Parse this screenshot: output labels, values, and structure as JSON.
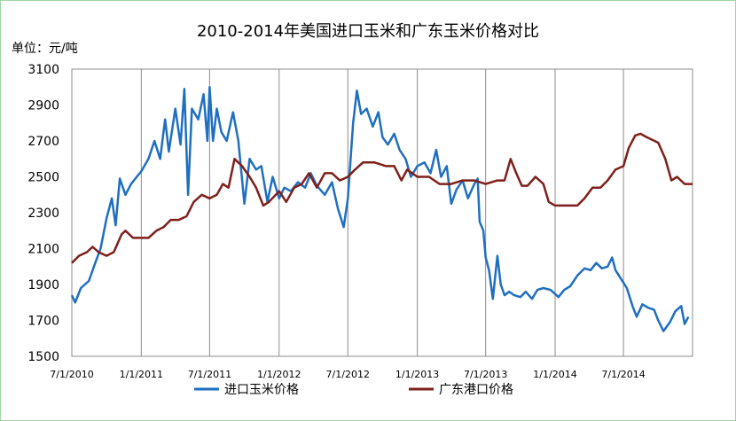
{
  "chart_data": {
    "type": "line",
    "title": "2010-2014年美国进口玉米和广东玉米价格对比",
    "ylabel": "单位：元/吨",
    "xlabel": "",
    "ylim": [
      1500,
      3100
    ],
    "yticks": [
      3100,
      2900,
      2700,
      2500,
      2300,
      2100,
      1900,
      1700,
      1500
    ],
    "xticks": [
      "7/1/2010",
      "1/1/2011",
      "7/1/2011",
      "1/1/2012",
      "7/1/2012",
      "1/1/2013",
      "7/1/2013",
      "1/1/2014",
      "7/1/2014"
    ],
    "xlim": [
      "2010-07-01",
      "2014-12-31"
    ],
    "grid": "vertical",
    "legend_position": "bottom",
    "series": [
      {
        "name": "进口玉米价格",
        "color": "#1f6fc0",
        "points": [
          [
            "2010-07-01",
            1840
          ],
          [
            "2010-07-10",
            1800
          ],
          [
            "2010-07-25",
            1880
          ],
          [
            "2010-08-15",
            1920
          ],
          [
            "2010-09-01",
            2020
          ],
          [
            "2010-09-15",
            2100
          ],
          [
            "2010-10-01",
            2270
          ],
          [
            "2010-10-15",
            2380
          ],
          [
            "2010-10-25",
            2230
          ],
          [
            "2010-11-05",
            2490
          ],
          [
            "2010-11-20",
            2400
          ],
          [
            "2010-12-05",
            2460
          ],
          [
            "2010-12-20",
            2500
          ],
          [
            "2011-01-01",
            2530
          ],
          [
            "2011-01-20",
            2600
          ],
          [
            "2011-02-05",
            2700
          ],
          [
            "2011-02-20",
            2600
          ],
          [
            "2011-03-05",
            2820
          ],
          [
            "2011-03-15",
            2640
          ],
          [
            "2011-04-01",
            2880
          ],
          [
            "2011-04-15",
            2680
          ],
          [
            "2011-04-25",
            2990
          ],
          [
            "2011-05-05",
            2400
          ],
          [
            "2011-05-15",
            2880
          ],
          [
            "2011-06-01",
            2820
          ],
          [
            "2011-06-15",
            2960
          ],
          [
            "2011-06-25",
            2700
          ],
          [
            "2011-07-01",
            3000
          ],
          [
            "2011-07-10",
            2700
          ],
          [
            "2011-07-20",
            2880
          ],
          [
            "2011-08-01",
            2750
          ],
          [
            "2011-08-15",
            2700
          ],
          [
            "2011-09-01",
            2860
          ],
          [
            "2011-09-15",
            2700
          ],
          [
            "2011-10-01",
            2350
          ],
          [
            "2011-10-15",
            2600
          ],
          [
            "2011-11-01",
            2540
          ],
          [
            "2011-11-15",
            2560
          ],
          [
            "2011-12-01",
            2360
          ],
          [
            "2011-12-15",
            2500
          ],
          [
            "2012-01-01",
            2380
          ],
          [
            "2012-01-15",
            2440
          ],
          [
            "2012-02-01",
            2420
          ],
          [
            "2012-02-20",
            2470
          ],
          [
            "2012-03-10",
            2440
          ],
          [
            "2012-03-25",
            2520
          ],
          [
            "2012-04-10",
            2450
          ],
          [
            "2012-05-01",
            2400
          ],
          [
            "2012-05-20",
            2470
          ],
          [
            "2012-06-05",
            2320
          ],
          [
            "2012-06-20",
            2220
          ],
          [
            "2012-07-01",
            2380
          ],
          [
            "2012-07-05",
            2500
          ],
          [
            "2012-07-15",
            2800
          ],
          [
            "2012-07-25",
            2980
          ],
          [
            "2012-08-05",
            2850
          ],
          [
            "2012-08-20",
            2880
          ],
          [
            "2012-09-05",
            2780
          ],
          [
            "2012-09-20",
            2860
          ],
          [
            "2012-10-01",
            2720
          ],
          [
            "2012-10-15",
            2680
          ],
          [
            "2012-11-01",
            2740
          ],
          [
            "2012-11-15",
            2650
          ],
          [
            "2012-12-01",
            2600
          ],
          [
            "2012-12-15",
            2500
          ],
          [
            "2013-01-01",
            2560
          ],
          [
            "2013-01-20",
            2580
          ],
          [
            "2013-02-05",
            2520
          ],
          [
            "2013-02-20",
            2650
          ],
          [
            "2013-03-05",
            2500
          ],
          [
            "2013-03-20",
            2560
          ],
          [
            "2013-04-01",
            2350
          ],
          [
            "2013-04-15",
            2430
          ],
          [
            "2013-05-01",
            2480
          ],
          [
            "2013-05-15",
            2380
          ],
          [
            "2013-06-01",
            2460
          ],
          [
            "2013-06-10",
            2490
          ],
          [
            "2013-06-15",
            2250
          ],
          [
            "2013-06-25",
            2200
          ],
          [
            "2013-07-01",
            2050
          ],
          [
            "2013-07-10",
            1980
          ],
          [
            "2013-07-20",
            1820
          ],
          [
            "2013-08-01",
            2060
          ],
          [
            "2013-08-10",
            1900
          ],
          [
            "2013-08-20",
            1840
          ],
          [
            "2013-09-01",
            1860
          ],
          [
            "2013-09-15",
            1840
          ],
          [
            "2013-10-01",
            1830
          ],
          [
            "2013-10-15",
            1860
          ],
          [
            "2013-11-01",
            1820
          ],
          [
            "2013-11-15",
            1870
          ],
          [
            "2013-12-01",
            1880
          ],
          [
            "2013-12-20",
            1870
          ],
          [
            "2014-01-10",
            1830
          ],
          [
            "2014-01-25",
            1870
          ],
          [
            "2014-02-10",
            1890
          ],
          [
            "2014-03-01",
            1950
          ],
          [
            "2014-03-20",
            1990
          ],
          [
            "2014-04-05",
            1980
          ],
          [
            "2014-04-20",
            2020
          ],
          [
            "2014-05-05",
            1990
          ],
          [
            "2014-05-20",
            2000
          ],
          [
            "2014-06-01",
            2050
          ],
          [
            "2014-06-10",
            1980
          ],
          [
            "2014-06-25",
            1930
          ],
          [
            "2014-07-10",
            1880
          ],
          [
            "2014-07-25",
            1780
          ],
          [
            "2014-08-05",
            1720
          ],
          [
            "2014-08-20",
            1790
          ],
          [
            "2014-09-05",
            1770
          ],
          [
            "2014-09-20",
            1760
          ],
          [
            "2014-10-01",
            1700
          ],
          [
            "2014-10-15",
            1640
          ],
          [
            "2014-11-01",
            1690
          ],
          [
            "2014-11-15",
            1750
          ],
          [
            "2014-12-01",
            1780
          ],
          [
            "2014-12-10",
            1680
          ],
          [
            "2014-12-20",
            1720
          ]
        ]
      },
      {
        "name": "广东港口价格",
        "color": "#7f1f1a",
        "points": [
          [
            "2010-07-01",
            2020
          ],
          [
            "2010-07-20",
            2060
          ],
          [
            "2010-08-10",
            2080
          ],
          [
            "2010-08-25",
            2110
          ],
          [
            "2010-09-10",
            2080
          ],
          [
            "2010-10-01",
            2060
          ],
          [
            "2010-10-20",
            2080
          ],
          [
            "2010-11-10",
            2180
          ],
          [
            "2010-11-20",
            2200
          ],
          [
            "2010-12-10",
            2160
          ],
          [
            "2011-01-01",
            2160
          ],
          [
            "2011-01-20",
            2160
          ],
          [
            "2011-02-10",
            2200
          ],
          [
            "2011-03-01",
            2220
          ],
          [
            "2011-03-20",
            2260
          ],
          [
            "2011-04-10",
            2260
          ],
          [
            "2011-05-01",
            2280
          ],
          [
            "2011-05-20",
            2360
          ],
          [
            "2011-06-10",
            2400
          ],
          [
            "2011-07-01",
            2380
          ],
          [
            "2011-07-20",
            2400
          ],
          [
            "2011-08-05",
            2460
          ],
          [
            "2011-08-20",
            2440
          ],
          [
            "2011-09-05",
            2600
          ],
          [
            "2011-09-25",
            2560
          ],
          [
            "2011-10-15",
            2500
          ],
          [
            "2011-11-01",
            2440
          ],
          [
            "2011-11-20",
            2340
          ],
          [
            "2011-12-05",
            2360
          ],
          [
            "2012-01-01",
            2420
          ],
          [
            "2012-01-20",
            2360
          ],
          [
            "2012-02-10",
            2440
          ],
          [
            "2012-03-01",
            2460
          ],
          [
            "2012-03-20",
            2520
          ],
          [
            "2012-04-10",
            2440
          ],
          [
            "2012-05-01",
            2520
          ],
          [
            "2012-05-20",
            2520
          ],
          [
            "2012-06-10",
            2480
          ],
          [
            "2012-07-01",
            2500
          ],
          [
            "2012-07-20",
            2540
          ],
          [
            "2012-08-10",
            2580
          ],
          [
            "2012-09-10",
            2580
          ],
          [
            "2012-10-10",
            2560
          ],
          [
            "2012-11-01",
            2560
          ],
          [
            "2012-11-20",
            2480
          ],
          [
            "2012-12-05",
            2540
          ],
          [
            "2013-01-01",
            2500
          ],
          [
            "2013-02-01",
            2500
          ],
          [
            "2013-03-01",
            2460
          ],
          [
            "2013-04-01",
            2460
          ],
          [
            "2013-05-01",
            2480
          ],
          [
            "2013-06-01",
            2480
          ],
          [
            "2013-07-01",
            2460
          ],
          [
            "2013-08-01",
            2480
          ],
          [
            "2013-08-20",
            2480
          ],
          [
            "2013-09-05",
            2600
          ],
          [
            "2013-09-20",
            2520
          ],
          [
            "2013-10-05",
            2450
          ],
          [
            "2013-10-20",
            2450
          ],
          [
            "2013-11-10",
            2500
          ],
          [
            "2013-12-01",
            2460
          ],
          [
            "2013-12-15",
            2360
          ],
          [
            "2014-01-01",
            2340
          ],
          [
            "2014-02-01",
            2340
          ],
          [
            "2014-03-01",
            2340
          ],
          [
            "2014-03-20",
            2380
          ],
          [
            "2014-04-10",
            2440
          ],
          [
            "2014-05-01",
            2440
          ],
          [
            "2014-05-20",
            2480
          ],
          [
            "2014-06-10",
            2540
          ],
          [
            "2014-07-01",
            2560
          ],
          [
            "2014-07-15",
            2660
          ],
          [
            "2014-08-01",
            2730
          ],
          [
            "2014-08-15",
            2740
          ],
          [
            "2014-09-01",
            2720
          ],
          [
            "2014-10-01",
            2690
          ],
          [
            "2014-10-20",
            2600
          ],
          [
            "2014-11-05",
            2480
          ],
          [
            "2014-11-20",
            2500
          ],
          [
            "2014-12-10",
            2460
          ],
          [
            "2014-12-31",
            2460
          ]
        ]
      }
    ]
  }
}
